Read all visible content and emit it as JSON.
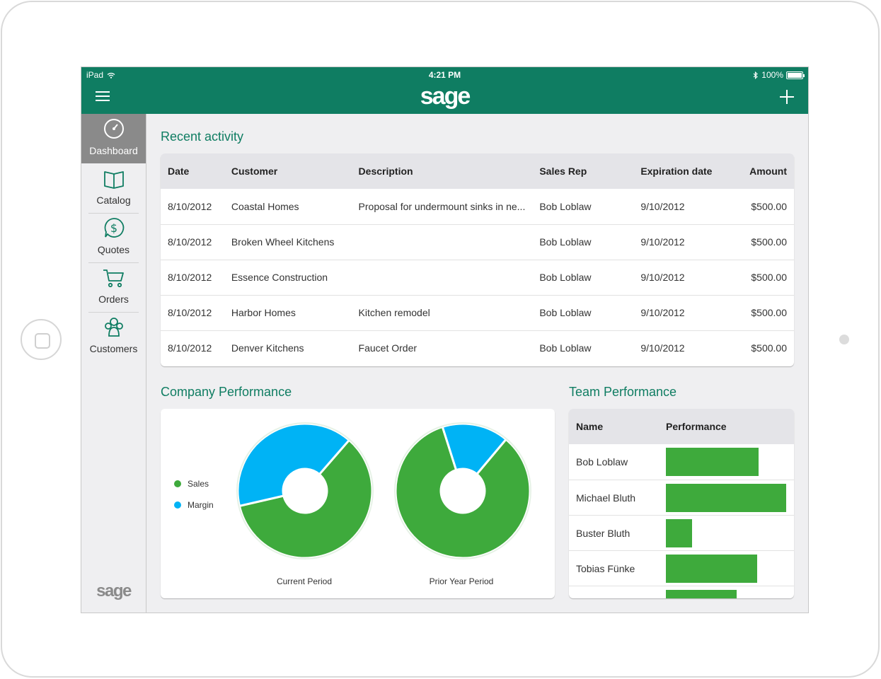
{
  "status_bar": {
    "device": "iPad",
    "time": "4:21 PM",
    "battery": "100%"
  },
  "header": {
    "logo": "sage"
  },
  "sidebar": {
    "items": [
      {
        "label": "Dashboard",
        "icon": "gauge-icon",
        "active": true
      },
      {
        "label": "Catalog",
        "icon": "book-icon",
        "active": false
      },
      {
        "label": "Quotes",
        "icon": "dollar-icon",
        "active": false
      },
      {
        "label": "Orders",
        "icon": "cart-icon",
        "active": false
      },
      {
        "label": "Customers",
        "icon": "people-icon",
        "active": false
      }
    ],
    "logo": "sage"
  },
  "recent_activity": {
    "title": "Recent activity",
    "columns": [
      "Date",
      "Customer",
      "Description",
      "Sales Rep",
      "Expiration date",
      "Amount"
    ],
    "rows": [
      {
        "date": "8/10/2012",
        "customer": "Coastal Homes",
        "description": "Proposal for undermount sinks in ne...",
        "rep": "Bob Loblaw",
        "expires": "9/10/2012",
        "amount": "$500.00"
      },
      {
        "date": "8/10/2012",
        "customer": "Broken Wheel Kitchens",
        "description": "",
        "rep": "Bob Loblaw",
        "expires": "9/10/2012",
        "amount": "$500.00"
      },
      {
        "date": "8/10/2012",
        "customer": "Essence Construction",
        "description": "",
        "rep": "Bob Loblaw",
        "expires": "9/10/2012",
        "amount": "$500.00"
      },
      {
        "date": "8/10/2012",
        "customer": "Harbor Homes",
        "description": "Kitchen remodel",
        "rep": "Bob Loblaw",
        "expires": "9/10/2012",
        "amount": "$500.00"
      },
      {
        "date": "8/10/2012",
        "customer": "Denver Kitchens",
        "description": "Faucet Order",
        "rep": "Bob Loblaw",
        "expires": "9/10/2012",
        "amount": "$500.00"
      }
    ]
  },
  "company_performance": {
    "title": "Company Performance",
    "colors": {
      "sales": "#3eaa3c",
      "margin": "#00b3f5"
    }
  },
  "team_performance": {
    "title": "Team Performance",
    "columns": [
      "Name",
      "Performance"
    ],
    "bar_color": "#3eaa3c"
  },
  "chart_data": [
    {
      "type": "pie",
      "title": "Current Period",
      "series": [
        {
          "name": "Sales",
          "value": 60
        },
        {
          "name": "Margin",
          "value": 40
        }
      ]
    },
    {
      "type": "pie",
      "title": "Prior Year Period",
      "series": [
        {
          "name": "Sales",
          "value": 84
        },
        {
          "name": "Margin",
          "value": 16
        }
      ]
    },
    {
      "type": "bar",
      "title": "Team Performance",
      "categories": [
        "Bob Loblaw",
        "Michael Bluth",
        "Buster Bluth",
        "Tobias Fünke",
        ""
      ],
      "values": [
        0.77,
        1.0,
        0.22,
        0.76,
        0.59
      ]
    }
  ]
}
